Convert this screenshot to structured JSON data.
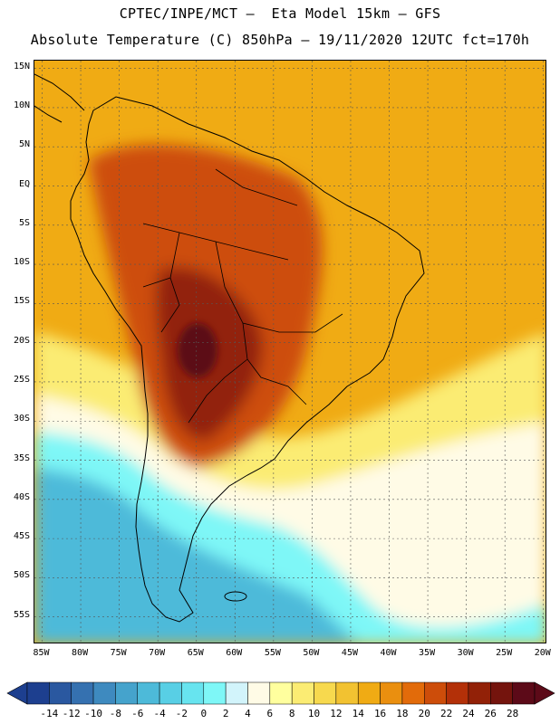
{
  "header": {
    "line1": "CPTEC/INPE/MCT –  Eta Model 15km – GFS",
    "line2": "Absolute Temperature (C) 850hPa – 19/11/2020 12UTC fct=170h"
  },
  "axes": {
    "lat_labels": [
      "15N",
      "10N",
      "5N",
      "EQ",
      "5S",
      "10S",
      "15S",
      "20S",
      "25S",
      "30S",
      "35S",
      "40S",
      "45S",
      "50S",
      "55S"
    ],
    "lon_labels": [
      "85W",
      "80W",
      "75W",
      "70W",
      "65W",
      "60W",
      "55W",
      "50W",
      "45W",
      "40W",
      "35W",
      "30W",
      "25W",
      "20W"
    ]
  },
  "colorbar": {
    "labels": [
      "-14",
      "-12",
      "-10",
      "-8",
      "-6",
      "-4",
      "-2",
      "0",
      "2",
      "4",
      "6",
      "8",
      "10",
      "12",
      "14",
      "16",
      "18",
      "20",
      "22",
      "24",
      "26",
      "28"
    ],
    "colors": [
      "#1d3f8f",
      "#2a58a0",
      "#3571b0",
      "#3e8abf",
      "#45a3cc",
      "#4dbad9",
      "#58cfe5",
      "#67e4ef",
      "#7ef7f7",
      "#d2f4fb",
      "#fffbe6",
      "#ffff9e",
      "#fbec73",
      "#f7d94e",
      "#f2c231",
      "#f0ab14",
      "#ea8f0f",
      "#e26b0a",
      "#cd4d0a",
      "#b33008",
      "#922107",
      "#74140d",
      "#5c0a18"
    ]
  },
  "map": {
    "colors": {
      "ocean_north": "#f0ab14",
      "warm_core": "#cd4d0a",
      "hot_core": "#922107",
      "cold_south": "#4dbad9",
      "cool_water": "#7ef7f7",
      "pale": "#fffbe6",
      "yellow": "#fbec73",
      "coast_line": "#000000",
      "grid_line": "#555555"
    }
  }
}
